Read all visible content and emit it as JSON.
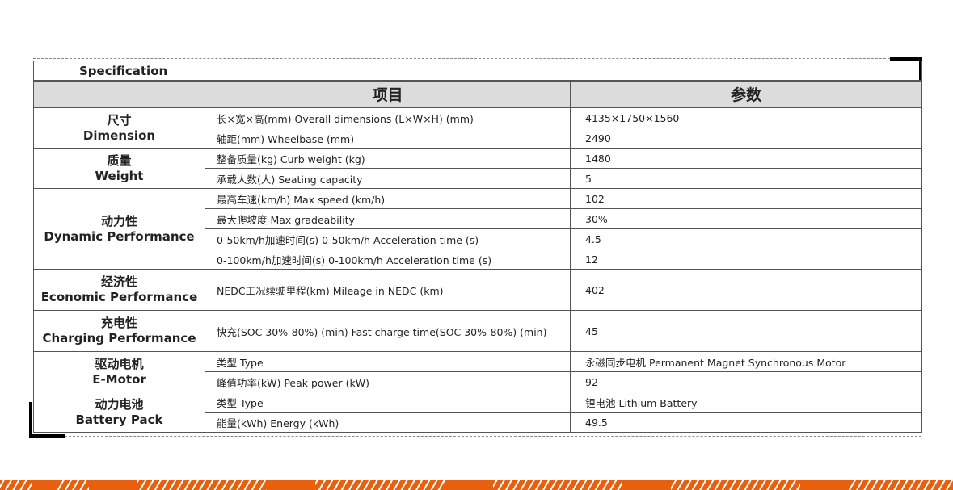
{
  "title": "Specification",
  "columns": {
    "item": "项目",
    "value": "参数"
  },
  "groups": [
    {
      "zh": "尺寸",
      "en": "Dimension",
      "rows": [
        {
          "item": "长×宽×高(mm) Overall dimensions (L×W×H) (mm)",
          "value": "4135×1750×1560"
        },
        {
          "item": "轴距(mm) Wheelbase (mm)",
          "value": "2490"
        }
      ]
    },
    {
      "zh": "质量",
      "en": "Weight",
      "rows": [
        {
          "item": "整备质量(kg) Curb weight (kg)",
          "value": "1480"
        },
        {
          "item": "承载人数(人) Seating capacity",
          "value": "5"
        }
      ]
    },
    {
      "zh": "动力性",
      "en": "Dynamic Performance",
      "rows": [
        {
          "item": "最高车速(km/h) Max speed (km/h)",
          "value": "102"
        },
        {
          "item": "最大爬坡度  Max gradeability",
          "value": "30%"
        },
        {
          "item": "0-50km/h加速时间(s) 0-50km/h Acceleration time (s)",
          "value": "4.5"
        },
        {
          "item": "0-100km/h加速时间(s) 0-100km/h Acceleration time (s)",
          "value": "12"
        }
      ]
    },
    {
      "zh": "经济性",
      "en": "Economic Performance",
      "rows": [
        {
          "item": "NEDC工况续驶里程(km) Mileage in NEDC (km)",
          "value": "402"
        }
      ]
    },
    {
      "zh": "充电性",
      "en": "Charging Performance",
      "rows": [
        {
          "item": "快充(SOC 30%-80%) (min) Fast charge time(SOC 30%-80%) (min)",
          "value": "45"
        }
      ]
    },
    {
      "zh": "驱动电机",
      "en": "E-Motor",
      "rows": [
        {
          "item": "类型 Type",
          "value": "永磁同步电机 Permanent Magnet Synchronous Motor"
        },
        {
          "item": "峰值功率(kW) Peak power (kW)",
          "value": "92"
        }
      ]
    },
    {
      "zh": "动力电池",
      "en": "Battery Pack",
      "rows": [
        {
          "item": "类型 Type",
          "value": "锂电池 Lithium Battery"
        },
        {
          "item": "能量(kWh) Energy (kWh)",
          "value": "49.5"
        }
      ]
    }
  ],
  "colors": {
    "accent": "#e8600e",
    "header_bg": "#dcdcdc"
  }
}
